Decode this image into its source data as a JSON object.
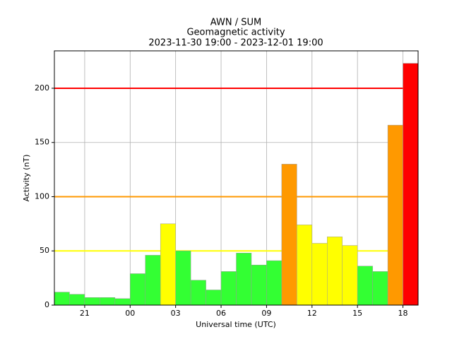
{
  "chart_data": {
    "type": "bar",
    "title": "AWN / SUM",
    "subtitle": "Geomagnetic activity",
    "period": "2023-11-30 19:00 - 2023-12-01 19:00",
    "x_label": "Universal time (UTC)",
    "y_label": "Activity (nT)",
    "x": [
      19,
      20,
      21,
      22,
      23,
      24,
      25,
      26,
      27,
      28,
      29,
      30,
      31,
      32,
      33,
      34,
      35,
      36,
      37,
      38,
      39,
      40,
      41,
      42
    ],
    "bar_width": 1,
    "values": [
      12,
      10,
      7,
      7,
      6,
      29,
      46,
      75,
      50,
      23,
      14,
      31,
      48,
      37,
      41,
      130,
      74,
      57,
      63,
      55,
      36,
      31,
      166,
      223
    ],
    "colors": [
      "#33ff33",
      "#33ff33",
      "#33ff33",
      "#33ff33",
      "#33ff33",
      "#33ff33",
      "#33ff33",
      "#ffff00",
      "#33ff33",
      "#33ff33",
      "#33ff33",
      "#33ff33",
      "#33ff33",
      "#33ff33",
      "#33ff33",
      "#ff9900",
      "#ffff00",
      "#ffff00",
      "#ffff00",
      "#ffff00",
      "#33ff33",
      "#33ff33",
      "#ff9900",
      "#ff0000"
    ],
    "thresholds": [
      {
        "value": 50,
        "color": "#ffff00"
      },
      {
        "value": 100,
        "color": "#ff9900"
      },
      {
        "value": 200,
        "color": "#ff0000"
      }
    ],
    "xlim": [
      19,
      43
    ],
    "xticks": [
      21,
      {
        "value": 24,
        "label": "00"
      },
      {
        "value": 27,
        "label": "03"
      },
      {
        "value": 30,
        "label": "06"
      },
      {
        "value": 33,
        "label": "09"
      },
      {
        "value": 36,
        "label": "12"
      },
      {
        "value": 39,
        "label": "15"
      },
      {
        "value": 42,
        "label": "18"
      }
    ],
    "ylim": [
      0,
      234.5
    ],
    "yticks": [
      0,
      50,
      100,
      150,
      200
    ],
    "grid": true
  }
}
